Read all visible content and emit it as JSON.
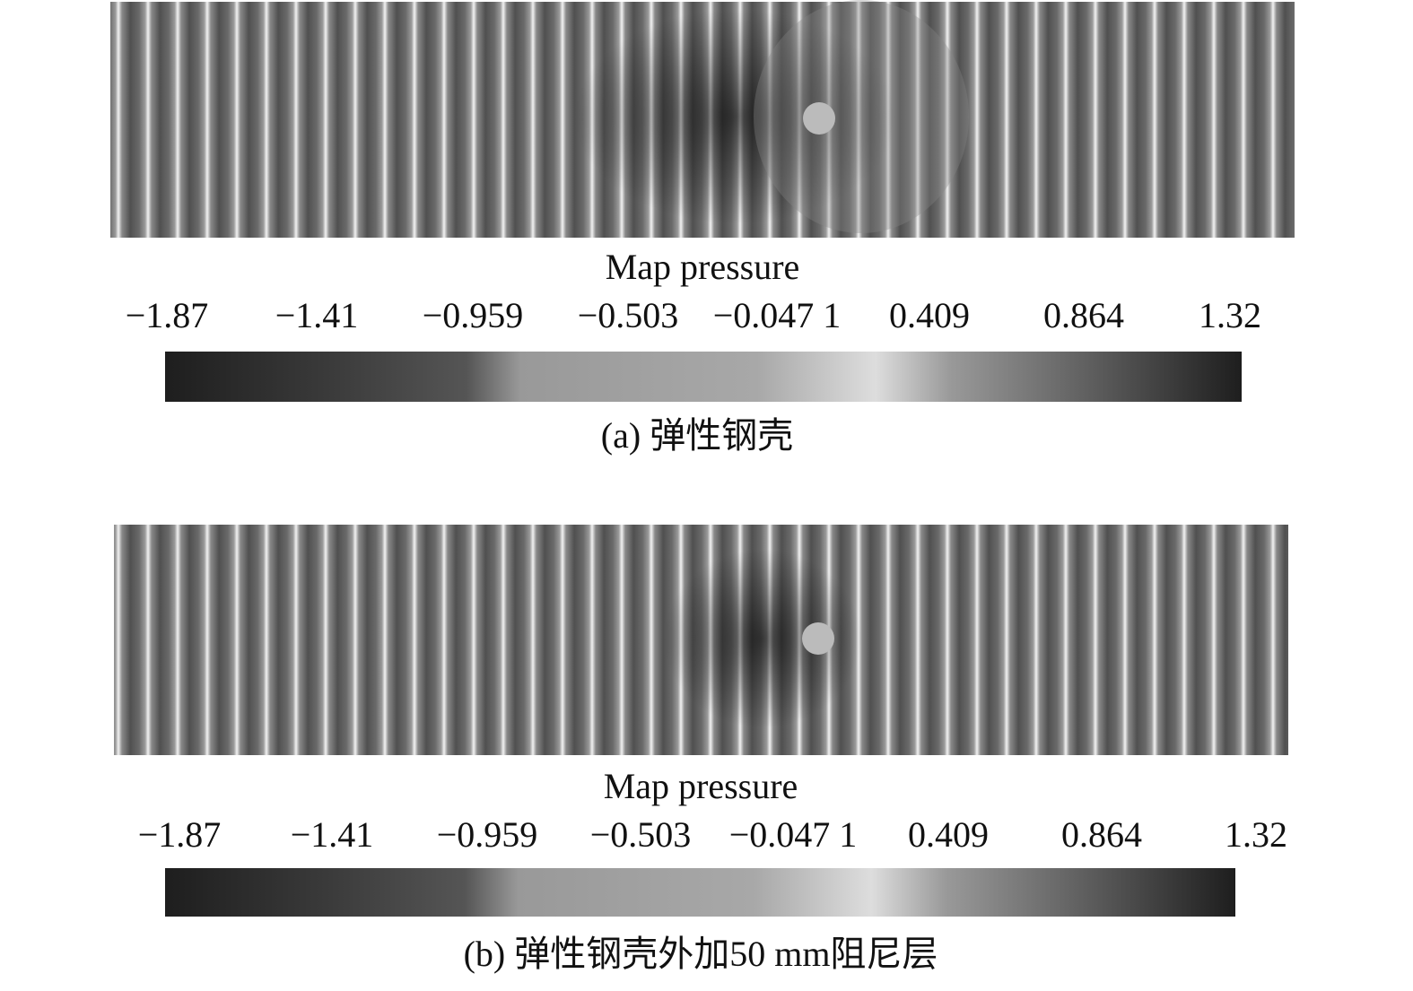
{
  "panels": [
    {
      "colorbar_title": "Map pressure",
      "colorbar_ticks": [
        "−1.87",
        "−1.41",
        "−0.959",
        "−0.503",
        "−0.047 1",
        "0.409",
        "0.864",
        "1.32"
      ],
      "caption": "(a) 弹性钢壳"
    },
    {
      "colorbar_title": "Map pressure",
      "colorbar_ticks": [
        "−1.87",
        "−1.41",
        "−0.959",
        "−0.503",
        "−0.047 1",
        "0.409",
        "0.864",
        "1.32"
      ],
      "caption": "(b) 弹性钢壳外加50 mm阻尼层"
    }
  ]
}
